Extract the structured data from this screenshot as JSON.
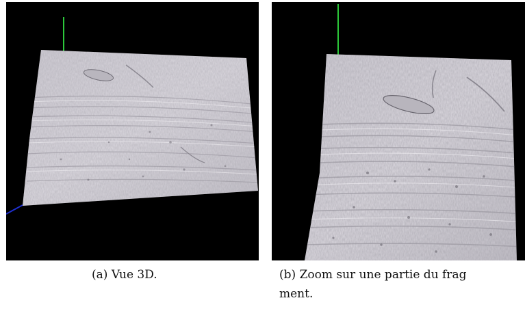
{
  "figures": [
    {
      "id": "a",
      "label": "(a)",
      "caption": "Vue 3D.",
      "background_color": "#000000",
      "axis_colors": {
        "vertical": "#2cc83a",
        "depth": "#1e2fd0"
      },
      "surface_color": "#d8d5dc"
    },
    {
      "id": "b",
      "label": "(b)",
      "caption_line1": "Zoom sur une partie du frag",
      "caption_line2": "ment.",
      "background_color": "#000000",
      "axis_colors": {
        "vertical": "#2cc83a",
        "depth": "#1e2fd0"
      },
      "surface_color": "#d8d5dc"
    }
  ]
}
